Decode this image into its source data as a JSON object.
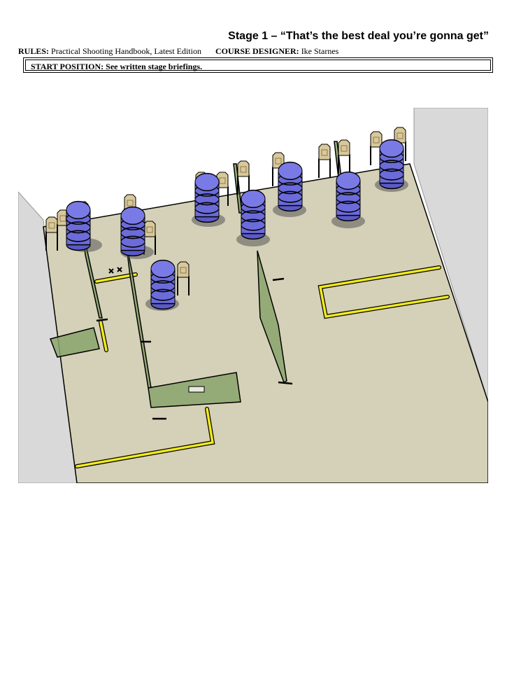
{
  "header": {
    "title": "Stage 1 – “That’s the best deal you’re gonna get”",
    "rules_label": "RULES:",
    "rules_value": "Practical Shooting Handbook, Latest Edition",
    "designer_label": "COURSE DESIGNER:",
    "designer_value": "Ike Starnes"
  },
  "start": {
    "label": "START POSITION:",
    "value": "See written stage briefings."
  },
  "colors": {
    "floor": "#d4d1b8",
    "wall": "#d9d9d9",
    "barrel": "#6b6bd9",
    "target": "#d9c89a",
    "fault_line": "#f2ea1b",
    "wall_panel": "#8aa46b"
  }
}
